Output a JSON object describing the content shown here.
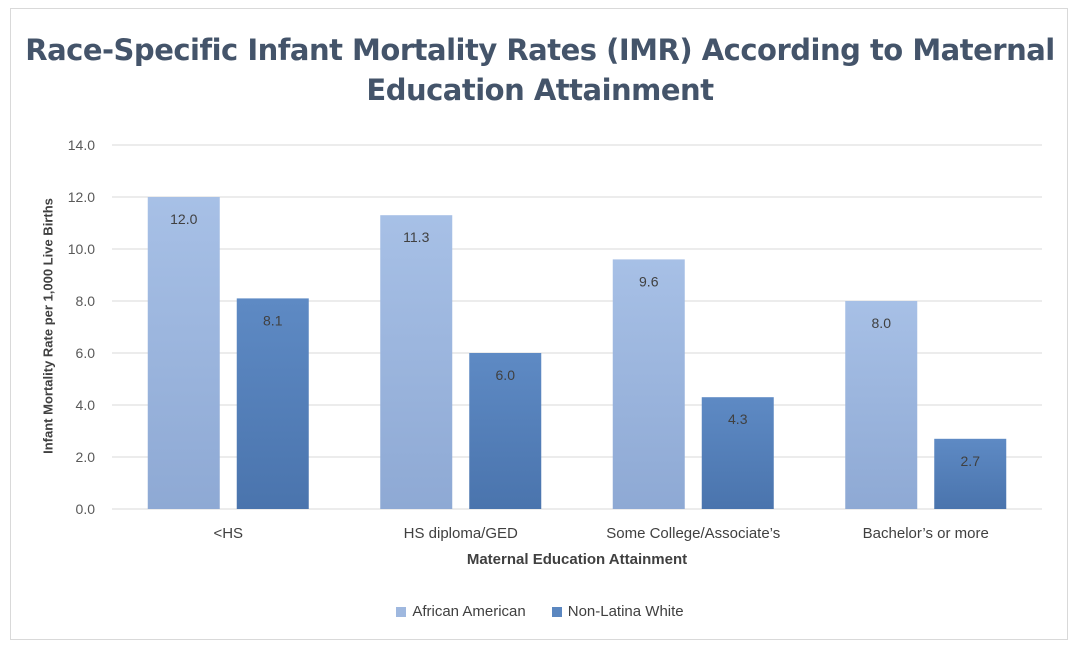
{
  "chart_data": {
    "type": "bar",
    "title": "Race-Specific Infant Mortality Rates (IMR) According to Maternal Education Attainment",
    "xlabel": "Maternal Education Attainment",
    "ylabel": "Infant Mortality Rate per 1,000 Live Births",
    "categories": [
      "<HS",
      "HS diploma/GED",
      "Some College/Associate’s",
      "Bachelor’s or more"
    ],
    "series": [
      {
        "name": "African American",
        "values": [
          12.0,
          11.3,
          9.6,
          8.0
        ],
        "color": "#9fb8df"
      },
      {
        "name": "Non-Latina White",
        "values": [
          8.1,
          6.0,
          4.3,
          2.7
        ],
        "color": "#5b87c0"
      }
    ],
    "ylim": [
      0,
      14
    ],
    "yticks": [
      "0.0",
      "2.0",
      "4.0",
      "6.0",
      "8.0",
      "10.0",
      "12.0",
      "14.0"
    ],
    "grid": true,
    "legend_position": "bottom"
  }
}
